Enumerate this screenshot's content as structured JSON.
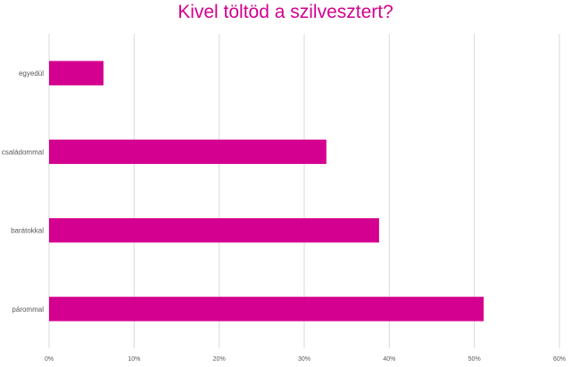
{
  "chart_data": {
    "type": "bar",
    "orientation": "horizontal",
    "title": "Kivel töltöd a szilvesztert?",
    "categories": [
      "egyedül",
      "családommal",
      "barátokkal",
      "párommal"
    ],
    "values": [
      6.4,
      32.6,
      38.8,
      51.1
    ],
    "xlabel": "",
    "ylabel": "",
    "xlim": [
      0,
      60
    ],
    "x_ticks": [
      "0%",
      "10%",
      "20%",
      "30%",
      "40%",
      "50%",
      "60%"
    ],
    "grid": "vertical",
    "legend": "none",
    "bar_color": "#d4008f",
    "grid_color": "#d9d9d9"
  }
}
